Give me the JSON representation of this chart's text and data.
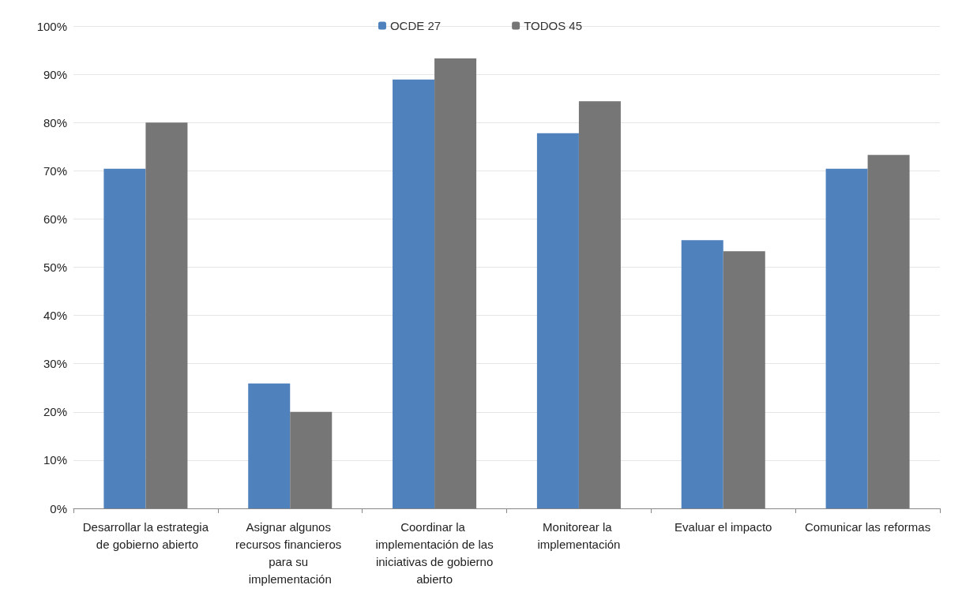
{
  "chart_data": {
    "type": "bar",
    "categories": [
      "Desarrollar la estrategia de gobierno abierto",
      "Asignar algunos recursos financieros para su implementación",
      "Coordinar la implementación de las iniciativas de gobierno abierto",
      "Monitorear la implementación",
      "Evaluar el impacto",
      "Comunicar las reformas"
    ],
    "series": [
      {
        "name": "OCDE 27",
        "color": "#4f81bd",
        "values": [
          70.4,
          25.9,
          88.9,
          77.8,
          55.6,
          70.4
        ]
      },
      {
        "name": "TODOS 45",
        "color": "#767676",
        "values": [
          80,
          20,
          93.3,
          84.4,
          53.3,
          73.3
        ]
      }
    ],
    "ylim": [
      0,
      100
    ],
    "yticks": [
      {
        "value": 0,
        "label": "0%"
      },
      {
        "value": 10,
        "label": "10%"
      },
      {
        "value": 20,
        "label": "20%"
      },
      {
        "value": 30,
        "label": "30%"
      },
      {
        "value": 40,
        "label": "40%"
      },
      {
        "value": 50,
        "label": "50%"
      },
      {
        "value": 60,
        "label": "60%"
      },
      {
        "value": 70,
        "label": "70%"
      },
      {
        "value": 80,
        "label": "80%"
      },
      {
        "value": 90,
        "label": "90%"
      },
      {
        "value": 100,
        "label": "100%"
      }
    ],
    "grid": "y",
    "legend": "top"
  }
}
